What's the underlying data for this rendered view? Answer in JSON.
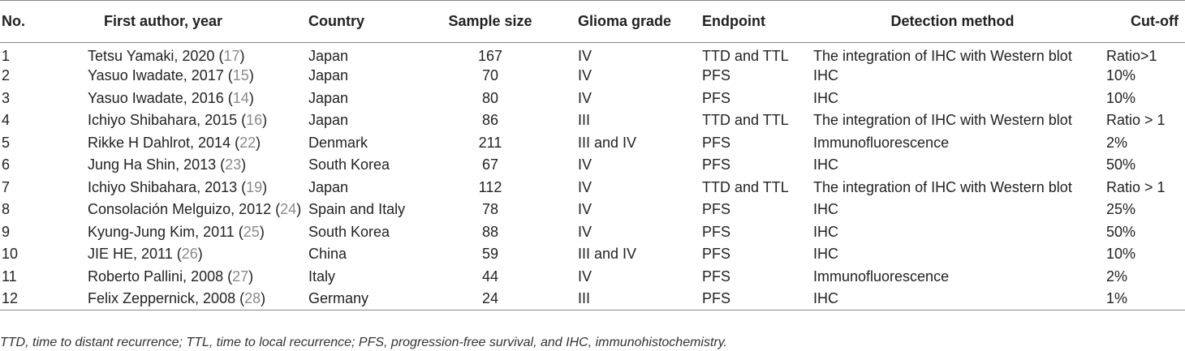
{
  "table": {
    "headers": [
      "No.",
      "First author, year",
      "Country",
      "Sample size",
      "Glioma grade",
      "Endpoint",
      "Detection method",
      "Cut-off"
    ],
    "rows": [
      {
        "no": "1",
        "author": "Tetsu Yamaki, 2020",
        "ref": "17",
        "country": "Japan",
        "sample": "167",
        "grade": "IV",
        "endpoint": "TTD and TTL",
        "method": "The integration of IHC with Western blot",
        "cutoff": "Ratio>1"
      },
      {
        "no": "2",
        "author": "Yasuo Iwadate, 2017",
        "ref": "15",
        "country": "Japan",
        "sample": "70",
        "grade": "IV",
        "endpoint": "PFS",
        "method": "IHC",
        "cutoff": "10%"
      },
      {
        "no": "3",
        "author": "Yasuo Iwadate, 2016",
        "ref": "14",
        "country": "Japan",
        "sample": "80",
        "grade": "IV",
        "endpoint": "PFS",
        "method": "IHC",
        "cutoff": "10%"
      },
      {
        "no": "4",
        "author": "Ichiyo Shibahara, 2015",
        "ref": "16",
        "country": "Japan",
        "sample": "86",
        "grade": "III",
        "endpoint": "TTD and TTL",
        "method": "The integration of IHC with Western blot",
        "cutoff": "Ratio > 1"
      },
      {
        "no": "5",
        "author": "Rikke H Dahlrot, 2014",
        "ref": "22",
        "country": "Denmark",
        "sample": "211",
        "grade": "III and IV",
        "endpoint": "PFS",
        "method": "Immunofluorescence",
        "cutoff": "2%"
      },
      {
        "no": "6",
        "author": "Jung Ha Shin, 2013",
        "ref": "23",
        "country": "South Korea",
        "sample": "67",
        "grade": "IV",
        "endpoint": "PFS",
        "method": "IHC",
        "cutoff": "50%"
      },
      {
        "no": "7",
        "author": "Ichiyo Shibahara, 2013",
        "ref": "19",
        "country": "Japan",
        "sample": "112",
        "grade": "IV",
        "endpoint": "TTD and TTL",
        "method": "The integration of IHC with Western blot",
        "cutoff": "Ratio > 1"
      },
      {
        "no": "8",
        "author": "Consolación Melguizo, 2012",
        "ref": "24",
        "country": "Spain and Italy",
        "sample": "78",
        "grade": "IV",
        "endpoint": "PFS",
        "method": "IHC",
        "cutoff": "25%"
      },
      {
        "no": "9",
        "author": "Kyung-Jung Kim, 2011",
        "ref": "25",
        "country": "South Korea",
        "sample": "88",
        "grade": "IV",
        "endpoint": "PFS",
        "method": "IHC",
        "cutoff": "50%"
      },
      {
        "no": "10",
        "author": "JIE HE, 2011",
        "ref": "26",
        "country": "China",
        "sample": "59",
        "grade": "III and IV",
        "endpoint": "PFS",
        "method": "IHC",
        "cutoff": "10%"
      },
      {
        "no": "11",
        "author": "Roberto Pallini, 2008",
        "ref": "27",
        "country": "Italy",
        "sample": "44",
        "grade": "IV",
        "endpoint": "PFS",
        "method": "Immunofluorescence",
        "cutoff": "2%"
      },
      {
        "no": "12",
        "author": "Felix Zeppernick, 2008",
        "ref": "28",
        "country": "Germany",
        "sample": "24",
        "grade": "III",
        "endpoint": "PFS",
        "method": "IHC",
        "cutoff": "1%"
      }
    ]
  },
  "footnote": "TTD, time to distant recurrence; TTL, time to local recurrence; PFS, progression-free survival, and IHC, immunohistochemistry.",
  "colors": {
    "ref_link": "#8a8a8a",
    "rule": "#888888"
  }
}
